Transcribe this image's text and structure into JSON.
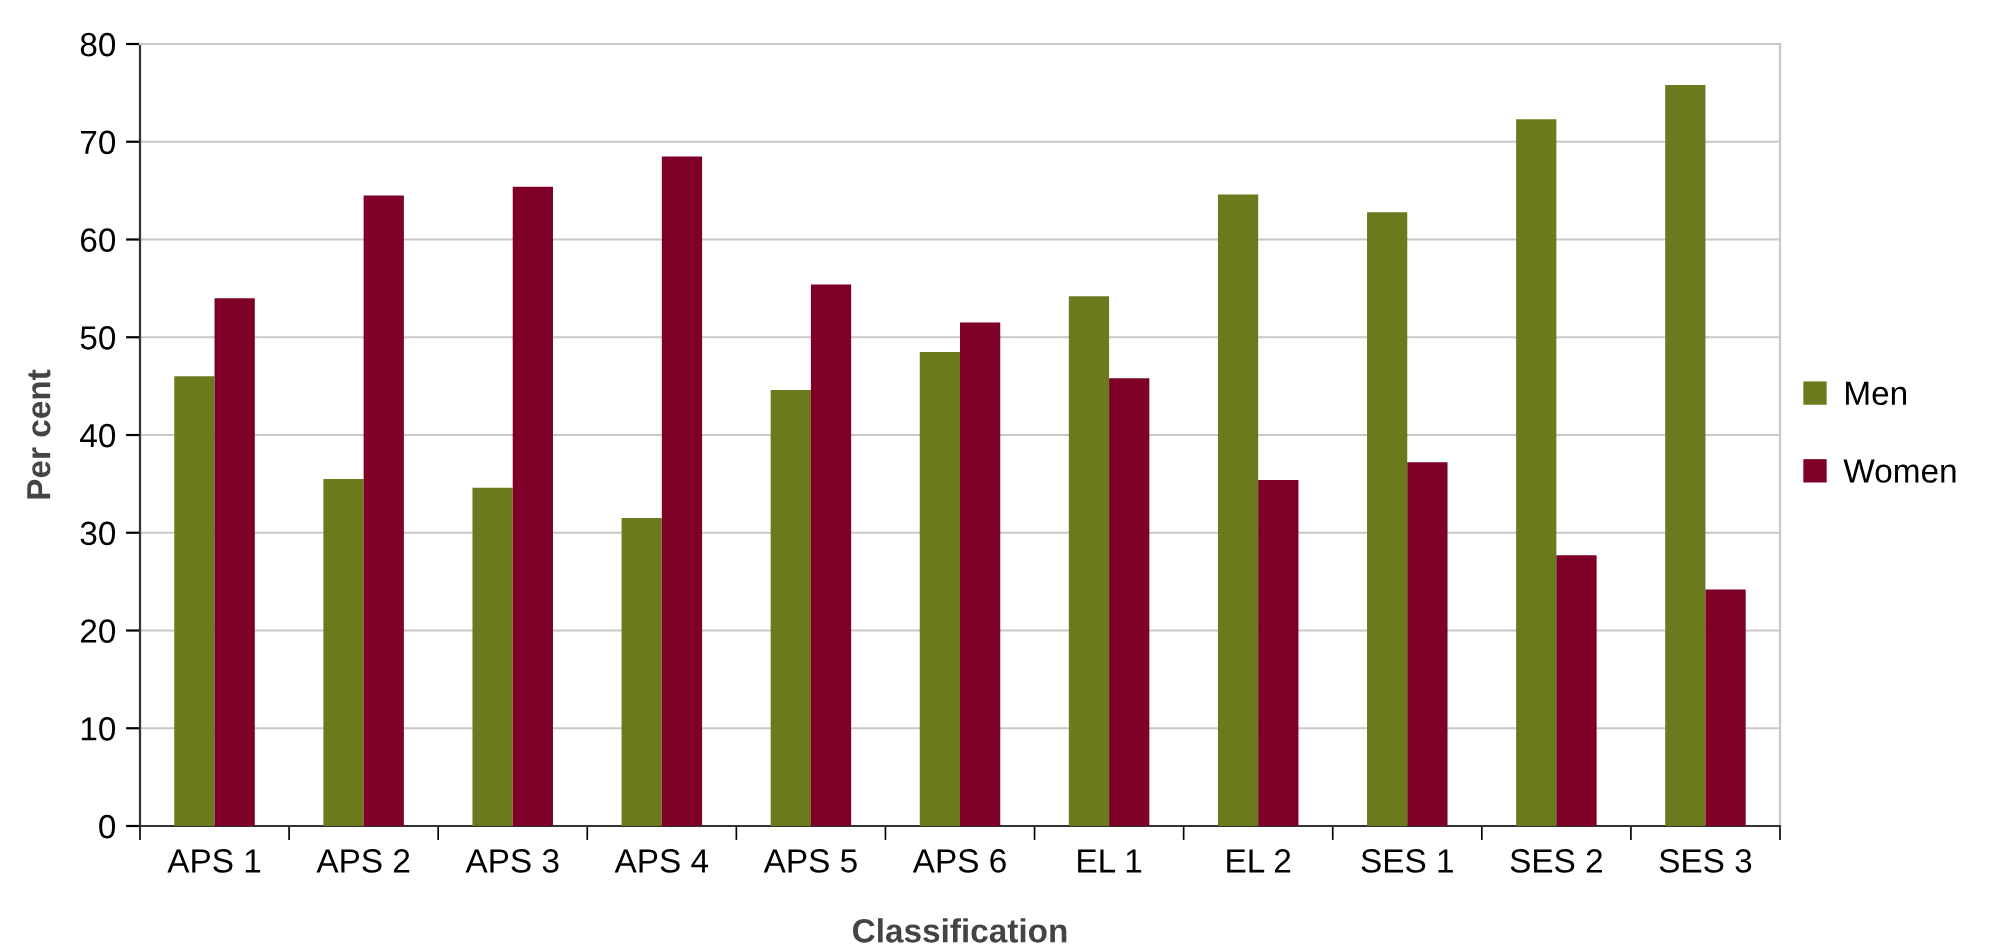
{
  "chart_data": {
    "type": "bar",
    "xlabel": "Classification",
    "ylabel": "Per cent",
    "categories": [
      "APS 1",
      "APS 2",
      "APS 3",
      "APS 4",
      "APS 5",
      "APS 6",
      "EL 1",
      "EL 2",
      "SES 1",
      "SES 2",
      "SES 3"
    ],
    "series": [
      {
        "name": "Men",
        "color": "#6b7a1c",
        "values": [
          46,
          35.5,
          34.6,
          31.5,
          44.6,
          48.5,
          54.2,
          64.6,
          62.8,
          72.3,
          75.8
        ]
      },
      {
        "name": "Women",
        "color": "#7f0026",
        "values": [
          54,
          64.5,
          65.4,
          68.5,
          55.4,
          51.5,
          45.8,
          35.4,
          37.2,
          27.7,
          24.2
        ]
      }
    ],
    "ylim": [
      0,
      80
    ],
    "yticks": [
      0,
      10,
      20,
      30,
      40,
      50,
      60,
      70,
      80
    ],
    "grid": "y",
    "legend": "right"
  }
}
